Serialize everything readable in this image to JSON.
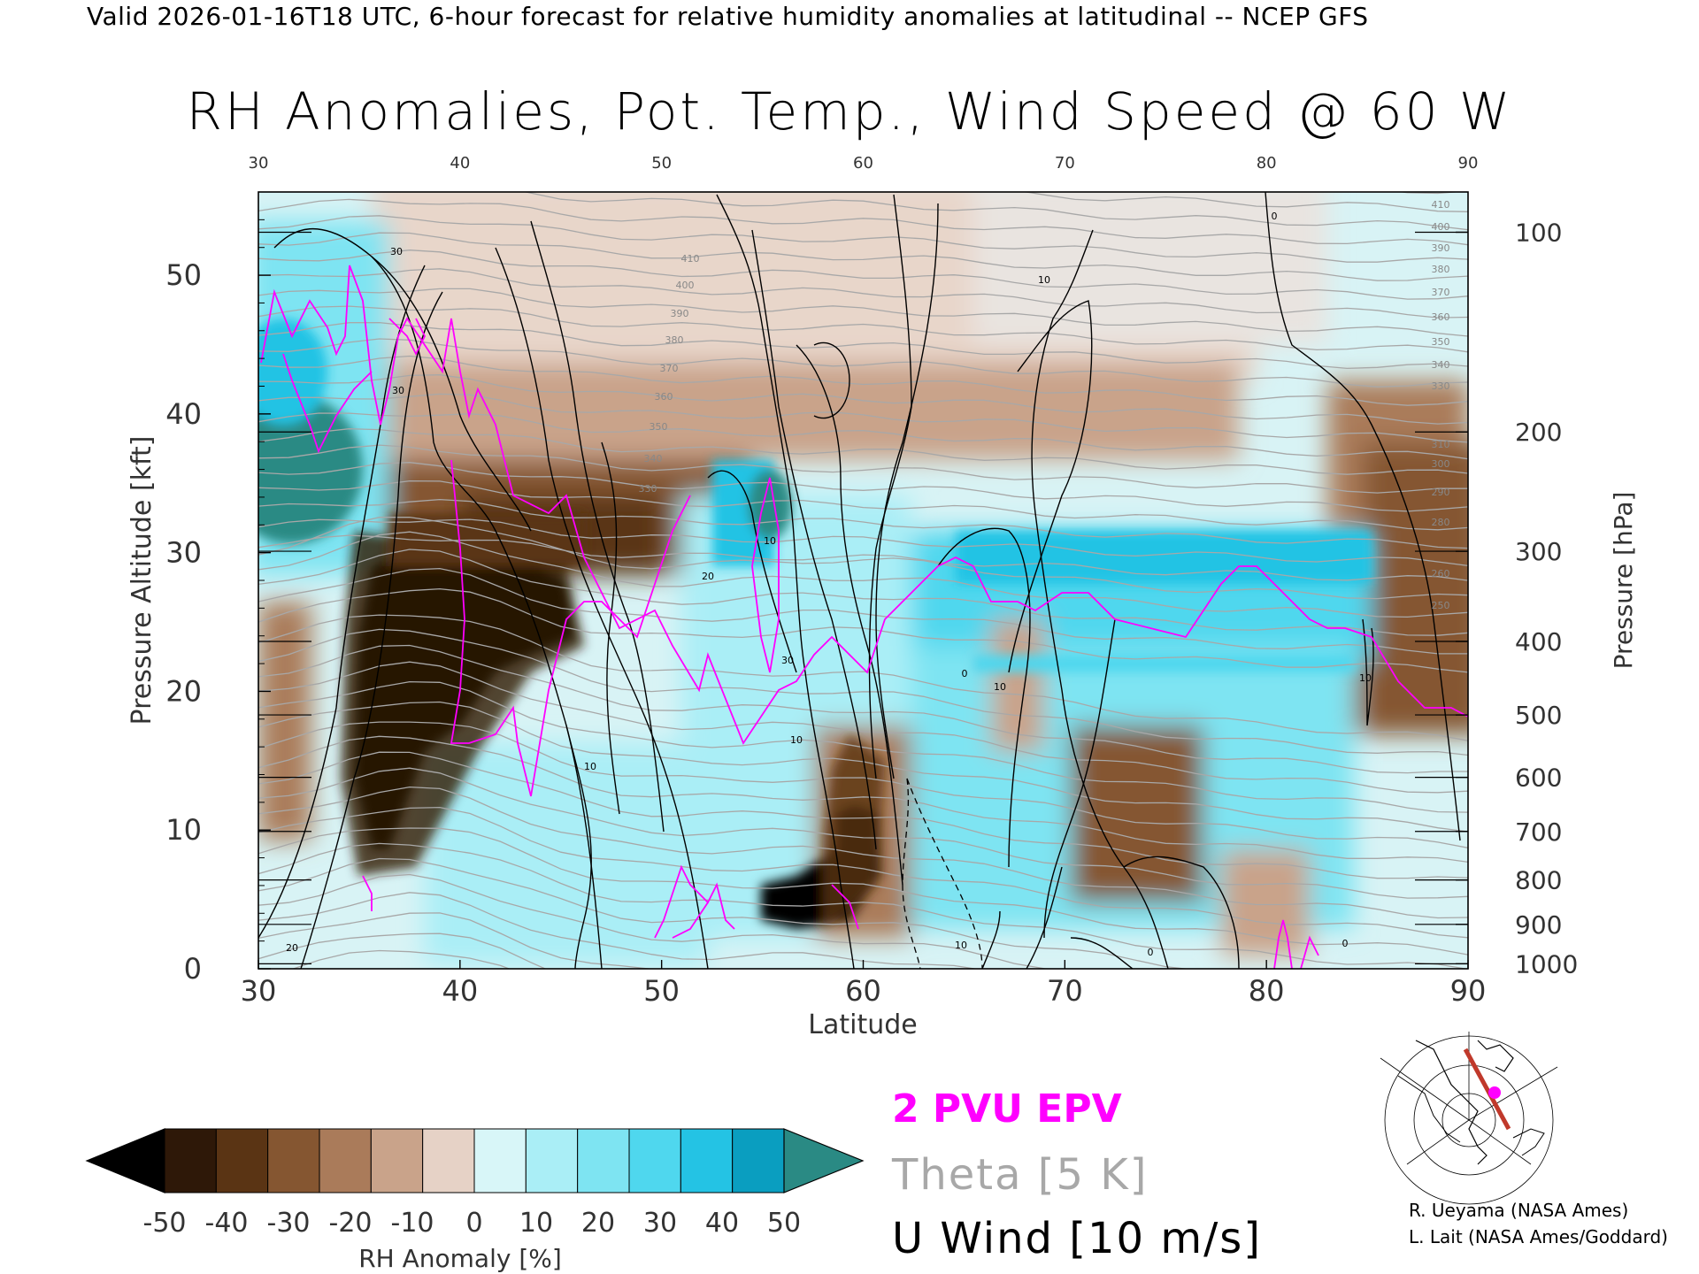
{
  "header": {
    "valid_line": "Valid 2026-01-16T18 UTC, 6-hour forecast for relative humidity anomalies at latitudinal -- NCEP GFS",
    "title": "RH Anomalies, Pot. Temp., Wind Speed @ 60 W"
  },
  "chart_data": {
    "type": "heatmap",
    "title": "RH Anomalies, Pot. Temp., Wind Speed @ 60 W",
    "xlabel": "Latitude",
    "ylabel": "Pressure Altitude [kft]",
    "y2label": "Pressure [hPa]",
    "xlim": [
      30,
      90
    ],
    "ylim": [
      0,
      56
    ],
    "x_ticks": [
      "30",
      "40",
      "50",
      "60",
      "70",
      "80",
      "90"
    ],
    "x_top_ticks": [
      "30",
      "40",
      "50",
      "60",
      "70",
      "80",
      "90"
    ],
    "y_ticks": [
      "0",
      "10",
      "20",
      "30",
      "40",
      "50"
    ],
    "pressure_ticks": [
      {
        "label": "100",
        "kft": 53.1
      },
      {
        "label": "200",
        "kft": 38.7
      },
      {
        "label": "300",
        "kft": 30.1
      },
      {
        "label": "400",
        "kft": 23.6
      },
      {
        "label": "500",
        "kft": 18.3
      },
      {
        "label": "600",
        "kft": 13.8
      },
      {
        "label": "700",
        "kft": 9.9
      },
      {
        "label": "800",
        "kft": 6.4
      },
      {
        "label": "900",
        "kft": 3.2
      },
      {
        "label": "1000",
        "kft": 0.36
      }
    ],
    "colorbar": {
      "label": "RH Anomaly [%]",
      "ticks": [
        "-50",
        "-40",
        "-30",
        "-20",
        "-10",
        "0",
        "10",
        "20",
        "30",
        "40",
        "50"
      ],
      "colors": [
        "#000000",
        "#2e1808",
        "#5a3414",
        "#855631",
        "#aa7b5a",
        "#c9a38a",
        "#e6d2c6",
        "#d8f6f8",
        "#aaeef6",
        "#7ee4f2",
        "#4fd7ee",
        "#24c3e4",
        "#0a9ec0",
        "#2a8a84"
      ]
    },
    "theta_labels": [
      "410",
      "400",
      "390",
      "380",
      "370",
      "360",
      "350",
      "340",
      "330",
      "310",
      "300",
      "290",
      "280",
      "260",
      "250"
    ],
    "wind_labels": [
      "10",
      "20",
      "30"
    ],
    "legend": [
      "2 PVU EPV",
      "Theta [5 K]",
      "U Wind [10 m/s]"
    ]
  },
  "legend": {
    "epv": "2 PVU EPV",
    "theta": "Theta [5 K]",
    "wind": "U Wind [10 m/s]"
  },
  "credits": {
    "line1": "R. Ueyama (NASA Ames)",
    "line2": "L. Lait (NASA Ames/Goddard)"
  },
  "colors": {
    "epv": "#ff00ff",
    "theta": "#a8a8a8",
    "wind": "#000000",
    "section_line": "#c0392b"
  }
}
